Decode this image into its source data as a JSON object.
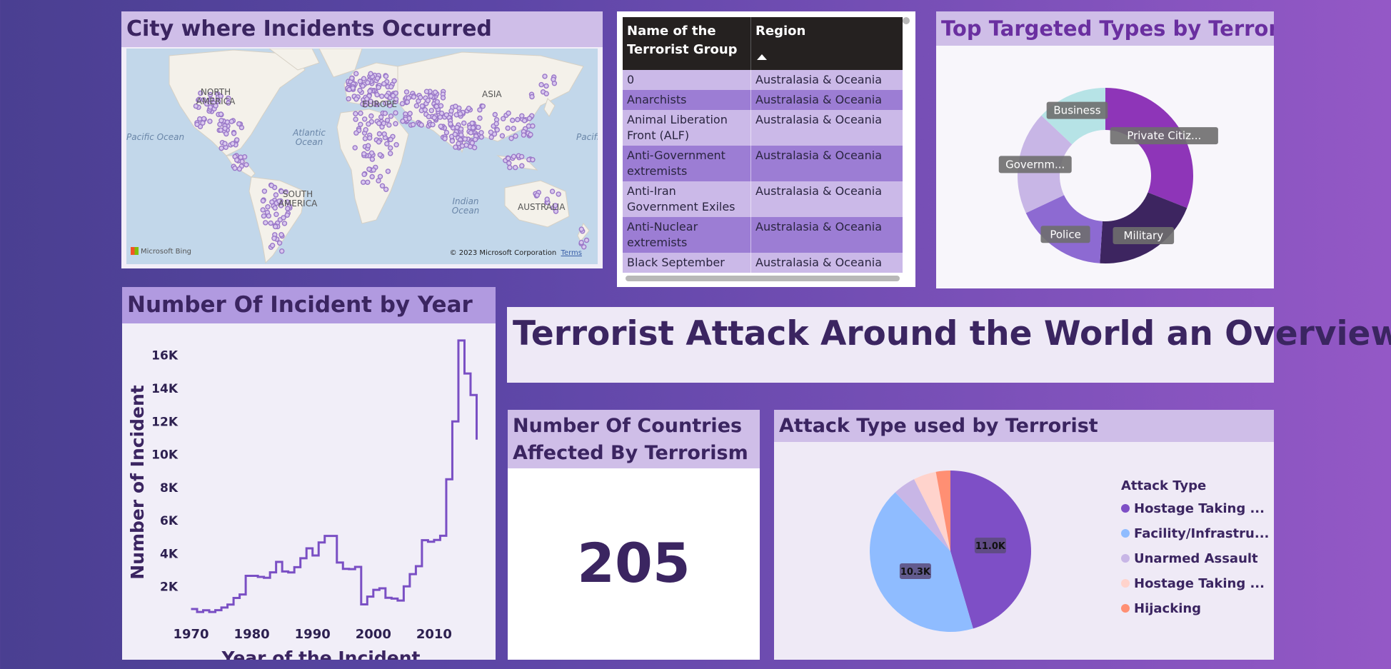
{
  "map": {
    "title": "City where Incidents Occurred",
    "continents": [
      "NORTH AMERICA",
      "EUROPE",
      "ASIA",
      "SOUTH AMERICA",
      "AUSTRALIA"
    ],
    "oceans": [
      "Atlantic Ocean",
      "Pacific Ocean",
      "Pacific",
      "Indian Ocean"
    ],
    "bing_logo": "Microsoft Bing",
    "copyright": "© 2023 Microsoft Corporation",
    "terms": "Terms",
    "dot_color": "#9a78c8"
  },
  "group_table": {
    "headers": [
      "Name of the Terrorist Group",
      "Region"
    ],
    "rows": [
      {
        "group": "0",
        "region": "Australasia & Oceania"
      },
      {
        "group": "Anarchists",
        "region": "Australasia & Oceania"
      },
      {
        "group": "Animal Liberation Front (ALF)",
        "region": "Australasia & Oceania"
      },
      {
        "group": "Anti-Government extremists",
        "region": "Australasia & Oceania"
      },
      {
        "group": "Anti-Iran Government Exiles",
        "region": "Australasia & Oceania"
      },
      {
        "group": "Anti-Nuclear extremists",
        "region": "Australasia & Oceania"
      },
      {
        "group": "Black September",
        "region": "Australasia & Oceania"
      }
    ]
  },
  "target_types": {
    "title": "Top Targeted Types by Terrorist",
    "chart_data": {
      "type": "pie",
      "donut": true,
      "categories": [
        "Private Citiz...",
        "Military",
        "Police",
        "Governm...",
        "Business"
      ],
      "values": [
        31,
        20,
        17,
        19,
        13
      ],
      "colors": [
        "#8e35b8",
        "#3d2560",
        "#8d6ad2",
        "#c8b6e6",
        "#b6e3e6"
      ]
    }
  },
  "incidents_by_year": {
    "title": "Number Of Incident by Year",
    "chart_data": {
      "type": "line",
      "xlabel": "Year of the Incident",
      "ylabel": "Number of Incident",
      "x_ticks": [
        1970,
        1980,
        1990,
        2000,
        2010
      ],
      "y_ticks": [
        2000,
        4000,
        6000,
        8000,
        10000,
        12000,
        14000,
        16000
      ],
      "y_tick_labels": [
        "2K",
        "4K",
        "6K",
        "8K",
        "10K",
        "12K",
        "14K",
        "16K"
      ],
      "xlim": [
        1969,
        2018
      ],
      "ylim": [
        0,
        17500
      ],
      "color": "#7a4fc4",
      "x": [
        1970,
        1971,
        1972,
        1973,
        1974,
        1975,
        1976,
        1977,
        1978,
        1979,
        1980,
        1981,
        1982,
        1983,
        1984,
        1985,
        1986,
        1987,
        1988,
        1989,
        1990,
        1991,
        1992,
        1993,
        1994,
        1995,
        1996,
        1997,
        1998,
        1999,
        2000,
        2001,
        2002,
        2003,
        2004,
        2005,
        2006,
        2007,
        2008,
        2009,
        2010,
        2011,
        2012,
        2013,
        2014,
        2015,
        2016,
        2017
      ],
      "y": [
        650,
        470,
        570,
        470,
        580,
        740,
        920,
        1320,
        1530,
        2660,
        2660,
        2590,
        2540,
        2870,
        3500,
        2920,
        2860,
        3180,
        3720,
        4320,
        3890,
        4680,
        5070,
        5070,
        3460,
        3080,
        3060,
        3200,
        930,
        1400,
        1810,
        1900,
        1330,
        1280,
        1160,
        2020,
        2760,
        3240,
        4810,
        4720,
        4830,
        5080,
        8500,
        12000,
        16900,
        14900,
        13600,
        10900
      ]
    }
  },
  "banner": {
    "title": "Terrorist Attack Around the World an Overview"
  },
  "countries_card": {
    "title": "Number Of Countries Affected By Terrorism",
    "value": "205"
  },
  "attack_types": {
    "title": "Attack Type used by Terrorist",
    "legend_title": "Attack Type",
    "chart_data": {
      "type": "pie",
      "categories": [
        "Hostage Taking ...",
        "Facility/Infrastru...",
        "Unarmed Assault",
        "Hostage Taking ...",
        "Hijacking"
      ],
      "values": [
        11000,
        10300,
        1100,
        1100,
        700
      ],
      "data_labels": [
        "11.0K",
        "10.3K",
        "",
        "",
        ""
      ],
      "colors": [
        "#7e4fc6",
        "#8fbcff",
        "#c8b6e6",
        "#ffd3cc",
        "#ff8f73"
      ]
    }
  }
}
